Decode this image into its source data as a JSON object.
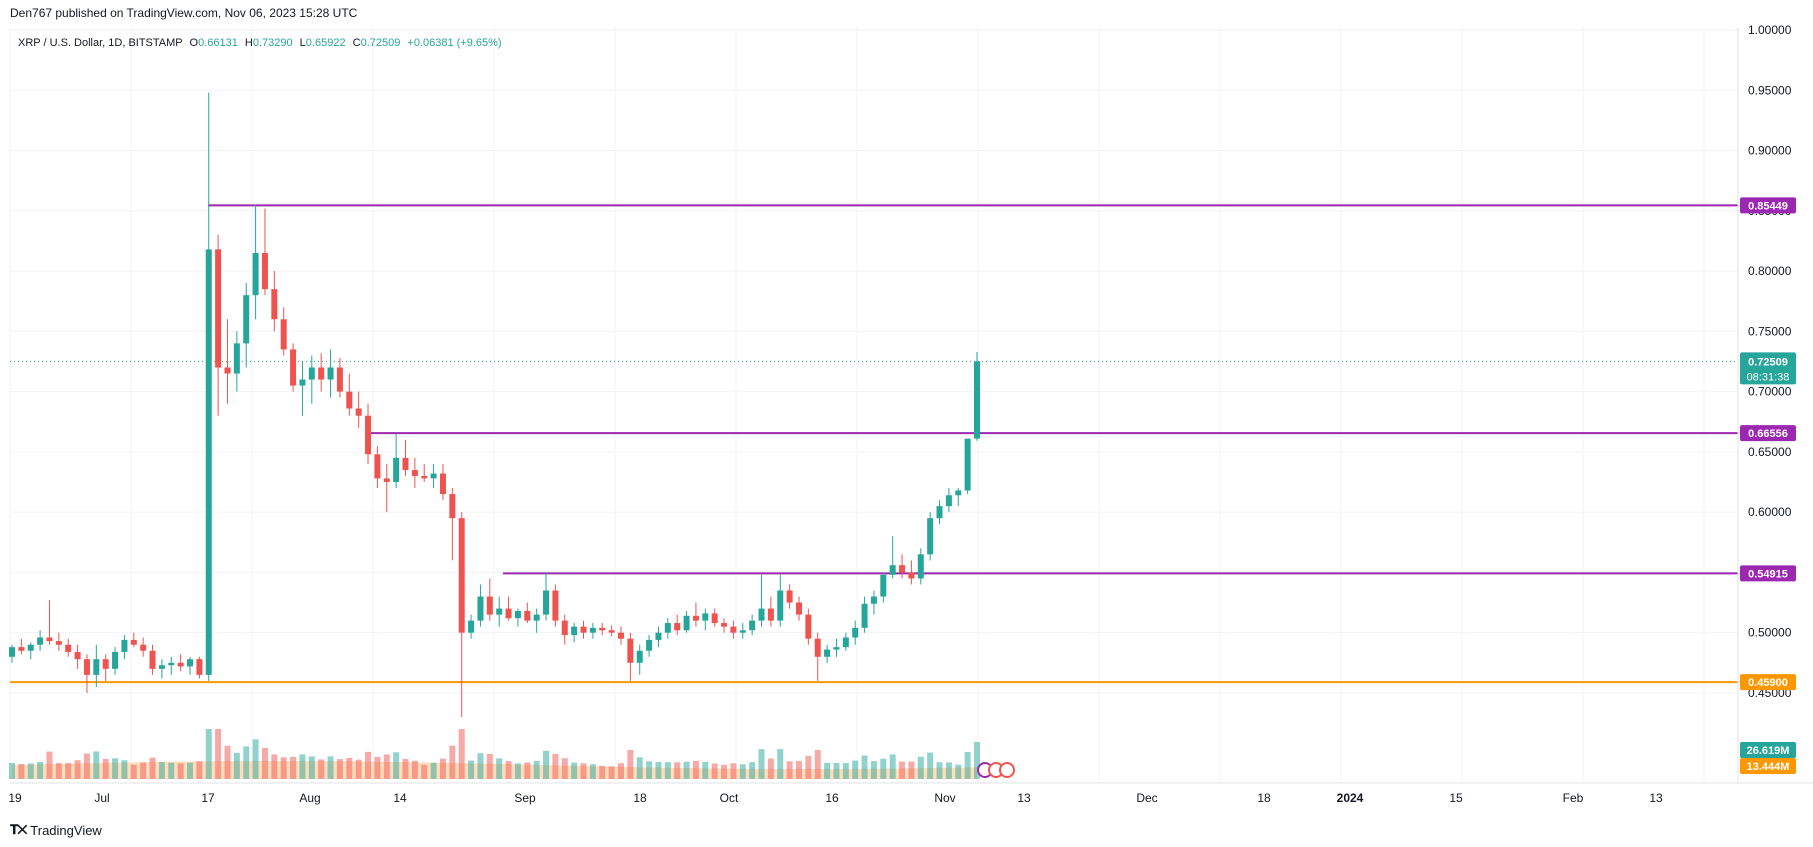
{
  "header": {
    "publisher_line": "Den767 published on TradingView.com, Nov 06, 2023 15:28 UTC"
  },
  "footer": {
    "logo_text": "TradingView"
  },
  "legend": {
    "symbol": "XRP / U.S. Dollar, 1D, BITSTAMP",
    "o_label": "O",
    "o_value": "0.66131",
    "h_label": "H",
    "h_value": "0.73290",
    "l_label": "L",
    "l_value": "0.65922",
    "c_label": "C",
    "c_value": "0.72509",
    "change": "+0.06381 (+9.65%)"
  },
  "colors": {
    "up": "#26a69a",
    "down": "#ef5350",
    "level_line": "#9c27b0",
    "support_line": "#ff9800",
    "grid": "#f0f3fa",
    "axis_text": "#131722",
    "volume_ma": "#ffcc99"
  },
  "price_axis": {
    "ticks": [
      "1.00000",
      "0.95000",
      "0.90000",
      "0.85000",
      "0.80000",
      "0.75000",
      "0.70000",
      "0.65000",
      "0.60000",
      "0.55000",
      "0.50000",
      "0.45000"
    ],
    "tick_values": [
      1.0,
      0.95,
      0.9,
      0.85,
      0.8,
      0.75,
      0.7,
      0.65,
      0.6,
      0.55,
      0.5,
      0.45
    ]
  },
  "time_axis": {
    "labels": [
      "19",
      "Jul",
      "17",
      "Aug",
      "14",
      "Sep",
      "18",
      "Oct",
      "16",
      "Nov",
      "13",
      "Dec",
      "18",
      "2024",
      "15",
      "Feb",
      "13"
    ],
    "bold_labels": [
      "2024"
    ]
  },
  "price_labels": [
    {
      "text": "0.85449",
      "value": 0.85449,
      "color": "#9c27b0"
    },
    {
      "text": "0.66556",
      "value": 0.66556,
      "color": "#9c27b0"
    },
    {
      "text": "0.54915",
      "value": 0.54915,
      "color": "#9c27b0"
    },
    {
      "text": "0.45900",
      "value": 0.459,
      "color": "#ff9800"
    }
  ],
  "current_price": {
    "text": "0.72509",
    "countdown": "08:31:38",
    "value": 0.72509
  },
  "volume_labels": [
    {
      "text": "26.619M",
      "color": "#26a69a"
    },
    {
      "text": "13.444M",
      "color": "#ff9800"
    }
  ],
  "chart_data": {
    "type": "candlestick",
    "title": "XRP / U.S. Dollar, 1D, BITSTAMP",
    "ylim": [
      0.44,
      1.0
    ],
    "y_scale": "linear",
    "grid": true,
    "horizontal_levels": [
      0.85449,
      0.66556,
      0.54915,
      0.459
    ],
    "candles": [
      [
        0.48,
        0.49,
        0.475,
        0.488
      ],
      [
        0.488,
        0.495,
        0.482,
        0.485
      ],
      [
        0.485,
        0.492,
        0.478,
        0.49
      ],
      [
        0.49,
        0.502,
        0.485,
        0.496
      ],
      [
        0.496,
        0.527,
        0.49,
        0.493
      ],
      [
        0.493,
        0.5,
        0.485,
        0.49
      ],
      [
        0.49,
        0.495,
        0.48,
        0.484
      ],
      [
        0.484,
        0.49,
        0.47,
        0.478
      ],
      [
        0.478,
        0.482,
        0.45,
        0.465
      ],
      [
        0.465,
        0.49,
        0.455,
        0.478
      ],
      [
        0.478,
        0.482,
        0.46,
        0.47
      ],
      [
        0.47,
        0.488,
        0.465,
        0.484
      ],
      [
        0.484,
        0.498,
        0.478,
        0.494
      ],
      [
        0.494,
        0.5,
        0.488,
        0.49
      ],
      [
        0.49,
        0.496,
        0.48,
        0.485
      ],
      [
        0.485,
        0.49,
        0.465,
        0.47
      ],
      [
        0.47,
        0.478,
        0.462,
        0.473
      ],
      [
        0.473,
        0.48,
        0.465,
        0.475
      ],
      [
        0.475,
        0.482,
        0.468,
        0.472
      ],
      [
        0.472,
        0.48,
        0.465,
        0.478
      ],
      [
        0.478,
        0.48,
        0.462,
        0.465
      ],
      [
        0.465,
        0.948,
        0.46,
        0.818
      ],
      [
        0.818,
        0.83,
        0.68,
        0.72
      ],
      [
        0.72,
        0.76,
        0.69,
        0.715
      ],
      [
        0.715,
        0.75,
        0.7,
        0.74
      ],
      [
        0.74,
        0.79,
        0.72,
        0.78
      ],
      [
        0.78,
        0.855,
        0.76,
        0.815
      ],
      [
        0.815,
        0.852,
        0.78,
        0.785
      ],
      [
        0.785,
        0.8,
        0.75,
        0.76
      ],
      [
        0.76,
        0.77,
        0.73,
        0.735
      ],
      [
        0.735,
        0.74,
        0.7,
        0.705
      ],
      [
        0.705,
        0.725,
        0.68,
        0.71
      ],
      [
        0.71,
        0.73,
        0.69,
        0.72
      ],
      [
        0.72,
        0.732,
        0.7,
        0.71
      ],
      [
        0.71,
        0.735,
        0.695,
        0.72
      ],
      [
        0.72,
        0.728,
        0.695,
        0.7
      ],
      [
        0.7,
        0.715,
        0.68,
        0.686
      ],
      [
        0.686,
        0.7,
        0.67,
        0.68
      ],
      [
        0.68,
        0.69,
        0.64,
        0.648
      ],
      [
        0.648,
        0.655,
        0.62,
        0.628
      ],
      [
        0.628,
        0.64,
        0.6,
        0.625
      ],
      [
        0.625,
        0.665,
        0.62,
        0.645
      ],
      [
        0.645,
        0.66,
        0.63,
        0.635
      ],
      [
        0.635,
        0.645,
        0.62,
        0.63
      ],
      [
        0.63,
        0.64,
        0.625,
        0.628
      ],
      [
        0.628,
        0.64,
        0.62,
        0.632
      ],
      [
        0.632,
        0.64,
        0.61,
        0.615
      ],
      [
        0.615,
        0.62,
        0.56,
        0.595
      ],
      [
        0.595,
        0.6,
        0.43,
        0.5
      ],
      [
        0.5,
        0.515,
        0.495,
        0.51
      ],
      [
        0.51,
        0.54,
        0.505,
        0.53
      ],
      [
        0.53,
        0.545,
        0.51,
        0.515
      ],
      [
        0.515,
        0.53,
        0.505,
        0.52
      ],
      [
        0.52,
        0.53,
        0.51,
        0.512
      ],
      [
        0.512,
        0.52,
        0.505,
        0.518
      ],
      [
        0.518,
        0.525,
        0.508,
        0.51
      ],
      [
        0.51,
        0.52,
        0.5,
        0.515
      ],
      [
        0.515,
        0.55,
        0.51,
        0.535
      ],
      [
        0.535,
        0.54,
        0.505,
        0.51
      ],
      [
        0.51,
        0.515,
        0.49,
        0.498
      ],
      [
        0.498,
        0.508,
        0.492,
        0.505
      ],
      [
        0.505,
        0.51,
        0.495,
        0.5
      ],
      [
        0.5,
        0.508,
        0.495,
        0.504
      ],
      [
        0.504,
        0.508,
        0.498,
        0.502
      ],
      [
        0.502,
        0.506,
        0.497,
        0.5
      ],
      [
        0.5,
        0.505,
        0.49,
        0.495
      ],
      [
        0.495,
        0.5,
        0.46,
        0.475
      ],
      [
        0.475,
        0.49,
        0.465,
        0.485
      ],
      [
        0.485,
        0.498,
        0.48,
        0.494
      ],
      [
        0.494,
        0.505,
        0.488,
        0.5
      ],
      [
        0.5,
        0.512,
        0.495,
        0.508
      ],
      [
        0.508,
        0.515,
        0.498,
        0.502
      ],
      [
        0.502,
        0.518,
        0.5,
        0.514
      ],
      [
        0.514,
        0.525,
        0.505,
        0.51
      ],
      [
        0.51,
        0.52,
        0.502,
        0.516
      ],
      [
        0.516,
        0.52,
        0.505,
        0.508
      ],
      [
        0.508,
        0.512,
        0.5,
        0.505
      ],
      [
        0.505,
        0.51,
        0.495,
        0.5
      ],
      [
        0.5,
        0.508,
        0.495,
        0.502
      ],
      [
        0.502,
        0.515,
        0.498,
        0.51
      ],
      [
        0.51,
        0.548,
        0.505,
        0.52
      ],
      [
        0.52,
        0.53,
        0.505,
        0.51
      ],
      [
        0.51,
        0.548,
        0.505,
        0.535
      ],
      [
        0.535,
        0.54,
        0.52,
        0.525
      ],
      [
        0.525,
        0.53,
        0.51,
        0.515
      ],
      [
        0.515,
        0.52,
        0.49,
        0.495
      ],
      [
        0.495,
        0.5,
        0.46,
        0.48
      ],
      [
        0.48,
        0.49,
        0.475,
        0.486
      ],
      [
        0.486,
        0.495,
        0.48,
        0.488
      ],
      [
        0.488,
        0.5,
        0.485,
        0.496
      ],
      [
        0.496,
        0.51,
        0.49,
        0.504
      ],
      [
        0.504,
        0.53,
        0.5,
        0.524
      ],
      [
        0.524,
        0.535,
        0.515,
        0.53
      ],
      [
        0.53,
        0.55,
        0.525,
        0.548
      ],
      [
        0.548,
        0.58,
        0.545,
        0.556
      ],
      [
        0.556,
        0.565,
        0.545,
        0.55
      ],
      [
        0.55,
        0.56,
        0.54,
        0.545
      ],
      [
        0.545,
        0.57,
        0.54,
        0.565
      ],
      [
        0.565,
        0.6,
        0.56,
        0.595
      ],
      [
        0.595,
        0.61,
        0.59,
        0.605
      ],
      [
        0.605,
        0.62,
        0.6,
        0.614
      ],
      [
        0.614,
        0.62,
        0.605,
        0.618
      ],
      [
        0.618,
        0.66,
        0.615,
        0.661
      ],
      [
        0.661,
        0.7329,
        0.6592,
        0.72509
      ]
    ],
    "volume_series": {
      "name": "Volume",
      "latest": "26.619M",
      "ma_latest": "13.444M"
    }
  }
}
